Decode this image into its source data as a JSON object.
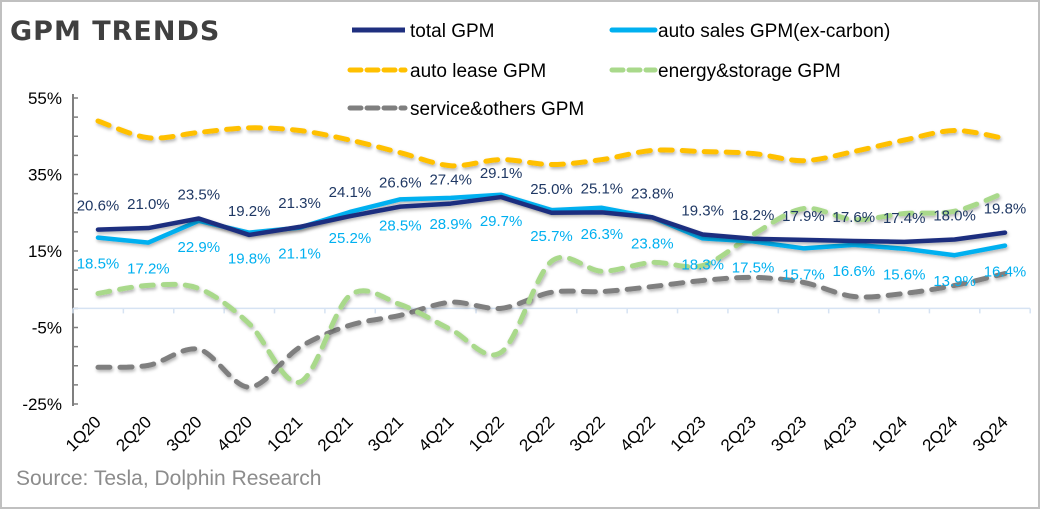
{
  "chart_data": {
    "type": "line",
    "title": "GPM TRENDS",
    "xlabel": "",
    "ylabel": "",
    "ylim": [
      -25,
      55
    ],
    "yticks": [
      "55%",
      "35%",
      "15%",
      "-5%",
      "-25%"
    ],
    "ytick_values": [
      55,
      35,
      15,
      -5,
      -25
    ],
    "grid": false,
    "legend_position": "top",
    "categories": [
      "1Q20",
      "2Q20",
      "3Q20",
      "4Q20",
      "1Q21",
      "2Q21",
      "3Q21",
      "4Q21",
      "1Q22",
      "2Q22",
      "3Q22",
      "4Q22",
      "1Q23",
      "2Q23",
      "3Q23",
      "4Q23",
      "1Q24",
      "2Q24",
      "3Q24"
    ],
    "series": [
      {
        "name": "total GPM",
        "color": "#1f2f7f",
        "style": "solid",
        "labeled": true,
        "label_color": "#1f3864",
        "values": [
          20.6,
          21.0,
          23.5,
          19.2,
          21.3,
          24.1,
          26.6,
          27.4,
          29.1,
          25.0,
          25.1,
          23.8,
          19.3,
          18.2,
          17.9,
          17.6,
          17.4,
          18.0,
          19.8
        ],
        "labels": [
          "20.6%",
          "21.0%",
          "23.5%",
          "19.2%",
          "21.3%",
          "24.1%",
          "26.6%",
          "27.4%",
          "29.1%",
          "25.0%",
          "25.1%",
          "23.8%",
          "19.3%",
          "18.2%",
          "17.9%",
          "17.6%",
          "17.4%",
          "18.0%",
          "19.8%"
        ]
      },
      {
        "name": "auto sales GPM(ex-carbon)",
        "color": "#00b0f0",
        "style": "solid",
        "labeled": true,
        "label_color": "#00b0f0",
        "values": [
          18.5,
          17.2,
          22.9,
          19.8,
          21.1,
          25.2,
          28.5,
          28.9,
          29.7,
          25.7,
          26.3,
          23.8,
          18.3,
          17.5,
          15.7,
          16.6,
          15.6,
          13.9,
          16.4
        ],
        "labels": [
          "18.5%",
          "17.2%",
          "22.9%",
          "19.8%",
          "21.1%",
          "25.2%",
          "28.5%",
          "28.9%",
          "29.7%",
          "25.7%",
          "26.3%",
          "23.8%",
          "18.3%",
          "17.5%",
          "15.7%",
          "16.6%",
          "15.6%",
          "13.9%",
          "16.4%"
        ]
      },
      {
        "name": "auto lease GPM",
        "color": "#ffc000",
        "style": "dashed",
        "labeled": false,
        "values": [
          49.0,
          44.6,
          46.0,
          47.2,
          46.5,
          44.0,
          40.7,
          37.3,
          38.9,
          37.6,
          38.9,
          41.3,
          41.0,
          40.5,
          38.6,
          41.0,
          44.0,
          46.5,
          44.4
        ]
      },
      {
        "name": "energy&storage GPM",
        "color": "#a9d98b",
        "style": "dashed",
        "labeled": false,
        "values": [
          3.9,
          6.0,
          5.2,
          -4.0,
          -19.3,
          3.4,
          1.0,
          -5.5,
          -11.5,
          12.3,
          9.7,
          12.0,
          11.2,
          19.3,
          26.1,
          23.2,
          24.8,
          25.4,
          30.3
        ]
      },
      {
        "name": "service&others GPM",
        "color": "#7f7f7f",
        "style": "dashed",
        "labeled": false,
        "values": [
          -15.4,
          -14.9,
          -10.7,
          -20.6,
          -10.2,
          -4.4,
          -1.8,
          1.6,
          0.0,
          4.2,
          4.4,
          5.7,
          7.3,
          8.1,
          6.8,
          3.1,
          3.9,
          6.0,
          9.1
        ]
      }
    ],
    "source": "Source: Tesla,  Dolphin Research"
  }
}
